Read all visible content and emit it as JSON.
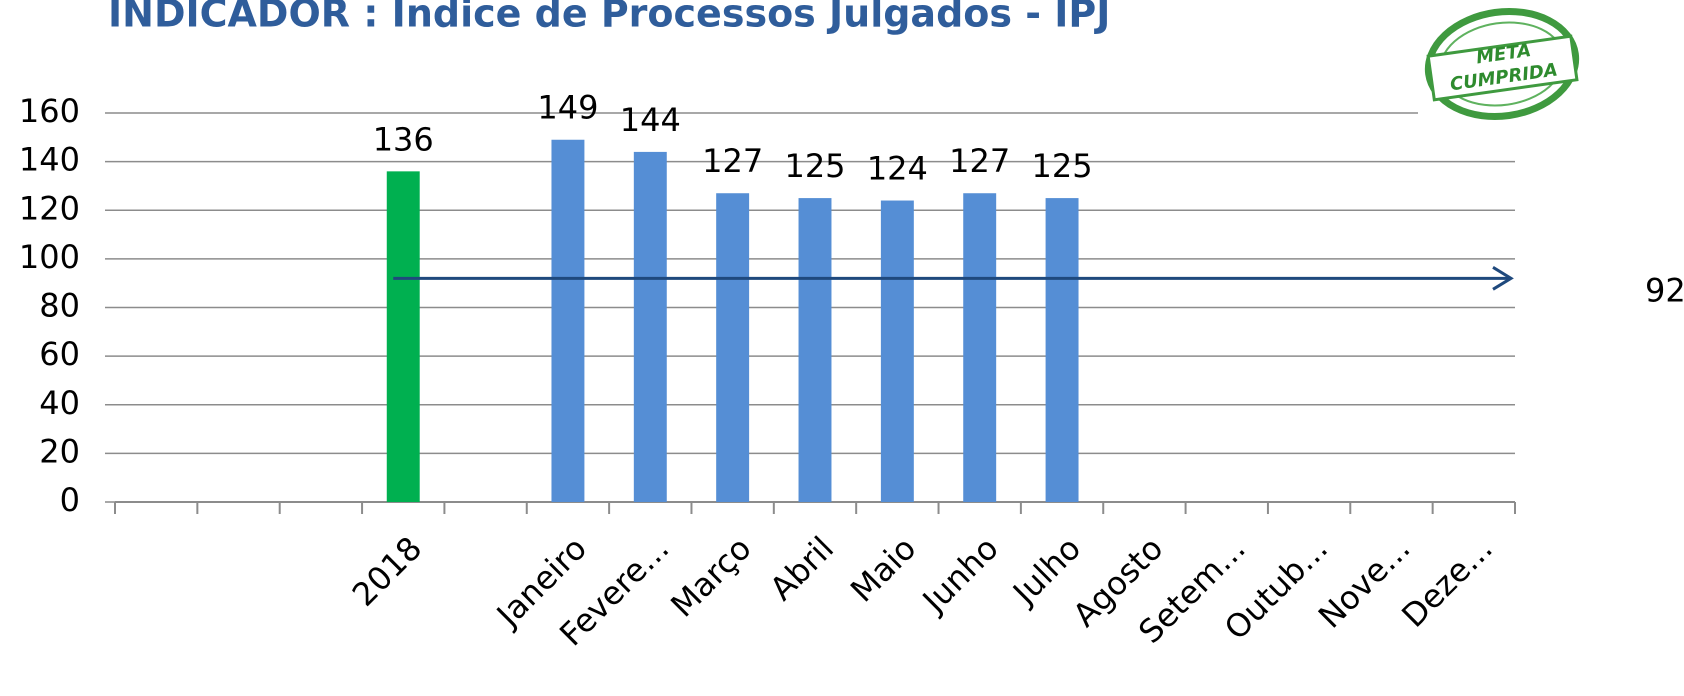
{
  "chart_data": {
    "type": "bar",
    "title": "INDICADOR : Índice de Processos Julgados - IPJ",
    "stamp": [
      "META",
      "CUMPRIDA"
    ],
    "categories": [
      null,
      null,
      null,
      "2018",
      null,
      "Janeiro",
      "Fevere...",
      "Março",
      "Abril",
      "Maio",
      "Junho",
      "Julho",
      "Agosto",
      "Setem...",
      "Outub...",
      "Nove...",
      "Deze..."
    ],
    "values": [
      null,
      null,
      null,
      136,
      null,
      149,
      144,
      127,
      125,
      124,
      127,
      125,
      null,
      null,
      null,
      null,
      null
    ],
    "colors": [
      null,
      null,
      null,
      "#00b050",
      null,
      "#558ed5",
      "#558ed5",
      "#558ed5",
      "#558ed5",
      "#558ed5",
      "#558ed5",
      "#558ed5",
      null,
      null,
      null,
      null,
      null
    ],
    "target": 92,
    "target_color": "#1f497d",
    "ylim": [
      0,
      160
    ],
    "yticks": [
      0,
      20,
      40,
      60,
      80,
      100,
      120,
      140,
      160
    ],
    "grid": true
  }
}
